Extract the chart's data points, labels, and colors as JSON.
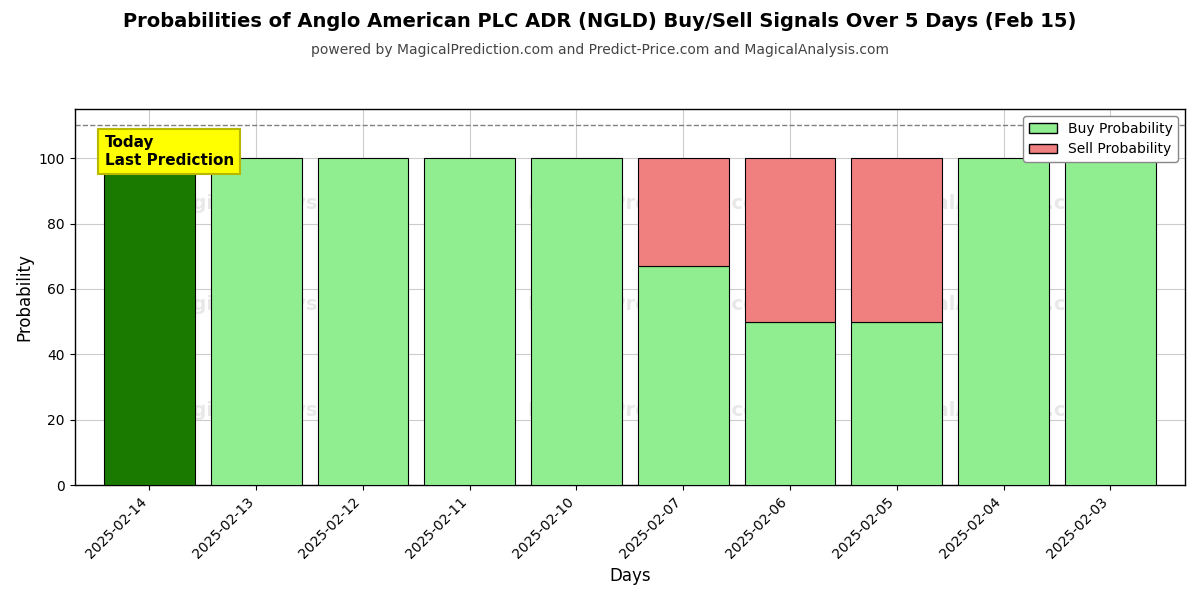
{
  "title": "Probabilities of Anglo American PLC ADR (NGLD) Buy/Sell Signals Over 5 Days (Feb 15)",
  "subtitle": "powered by MagicalPrediction.com and Predict-Price.com and MagicalAnalysis.com",
  "xlabel": "Days",
  "ylabel": "Probability",
  "categories": [
    "2025-02-14",
    "2025-02-13",
    "2025-02-12",
    "2025-02-11",
    "2025-02-10",
    "2025-02-07",
    "2025-02-06",
    "2025-02-05",
    "2025-02-04",
    "2025-02-03"
  ],
  "buy_values": [
    100,
    100,
    100,
    100,
    100,
    67,
    50,
    50,
    100,
    100
  ],
  "sell_values": [
    0,
    0,
    0,
    0,
    0,
    33,
    50,
    50,
    0,
    0
  ],
  "buy_color_today": "#1a7a00",
  "buy_color_normal": "#90ee90",
  "sell_color": "#f08080",
  "today_label": "Today\nLast Prediction",
  "today_box_color": "#ffff00",
  "today_box_edge": "#b8b800",
  "dashed_line_y": 110,
  "ylim": [
    0,
    115
  ],
  "yticks": [
    0,
    20,
    40,
    60,
    80,
    100
  ],
  "legend_buy": "Buy Probability",
  "legend_sell": "Sell Probability",
  "background_color": "#ffffff",
  "grid_color": "#cccccc",
  "bar_edge_color": "#000000",
  "bar_width": 0.85,
  "title_fontsize": 14,
  "subtitle_fontsize": 10,
  "axis_label_fontsize": 12,
  "tick_fontsize": 10
}
